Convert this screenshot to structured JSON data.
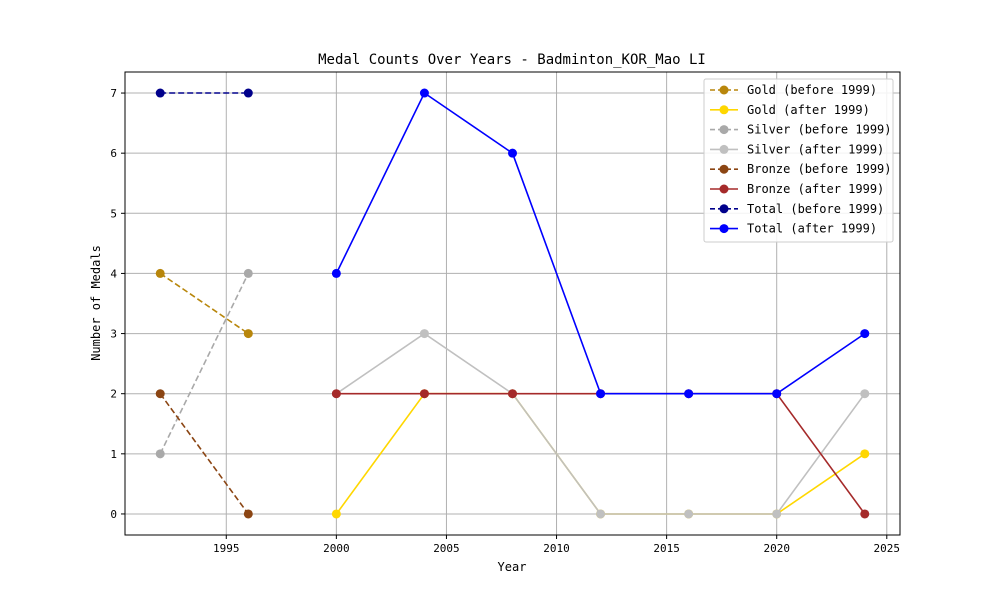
{
  "chart_data": {
    "type": "line",
    "title": "Medal Counts Over Years - Badminton_KOR_Mao LI",
    "xlabel": "Year",
    "ylabel": "Number of Medals",
    "xlim": [
      1990.4,
      2025.6
    ],
    "ylim": [
      -0.35,
      7.35
    ],
    "xticks": [
      1995,
      2000,
      2005,
      2010,
      2015,
      2020,
      2025
    ],
    "yticks": [
      0,
      1,
      2,
      3,
      4,
      5,
      6,
      7
    ],
    "grid": true,
    "legend_position": "top-right",
    "series": [
      {
        "name": "Gold (before 1999)",
        "color": "#b8860b",
        "dash": true,
        "x": [
          1992,
          1996
        ],
        "y": [
          4,
          3
        ]
      },
      {
        "name": "Gold (after 1999)",
        "color": "#ffd700",
        "dash": false,
        "x": [
          2000,
          2004,
          2008,
          2012,
          2016,
          2020,
          2024
        ],
        "y": [
          0,
          2,
          2,
          0,
          0,
          0,
          1
        ]
      },
      {
        "name": "Silver (before 1999)",
        "color": "#a9a9a9",
        "dash": true,
        "x": [
          1992,
          1996
        ],
        "y": [
          1,
          4
        ]
      },
      {
        "name": "Silver (after 1999)",
        "color": "#c0c0c0",
        "dash": false,
        "x": [
          2000,
          2004,
          2008,
          2012,
          2016,
          2020,
          2024
        ],
        "y": [
          2,
          3,
          2,
          0,
          0,
          0,
          2
        ]
      },
      {
        "name": "Bronze (before 1999)",
        "color": "#8b4513",
        "dash": true,
        "x": [
          1992,
          1996
        ],
        "y": [
          2,
          0
        ]
      },
      {
        "name": "Bronze (after 1999)",
        "color": "#a52a2a",
        "dash": false,
        "x": [
          2000,
          2004,
          2008,
          2012,
          2016,
          2020,
          2024
        ],
        "y": [
          2,
          2,
          2,
          2,
          2,
          2,
          0
        ]
      },
      {
        "name": "Total (before 1999)",
        "color": "#00008b",
        "dash": true,
        "x": [
          1992,
          1996
        ],
        "y": [
          7,
          7
        ]
      },
      {
        "name": "Total (after 1999)",
        "color": "#0000ff",
        "dash": false,
        "x": [
          2000,
          2004,
          2008,
          2012,
          2016,
          2020,
          2024
        ],
        "y": [
          4,
          7,
          6,
          2,
          2,
          2,
          3
        ]
      }
    ]
  }
}
